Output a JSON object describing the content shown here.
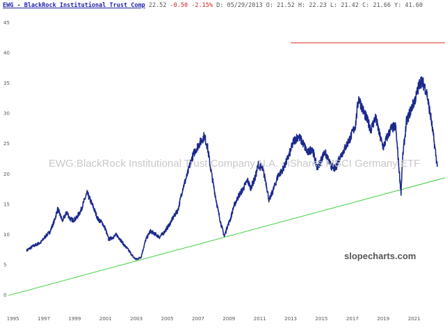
{
  "header": {
    "symbol_title": "EWG - BlackRock Institutional Trust Comp",
    "last": "22.52",
    "change": "-0.50",
    "change_pct": "-2.15%",
    "date": "D: 05/29/2013",
    "open": "O: 21.52",
    "high": "H: 22.23",
    "low": "L: 21.42",
    "close": "C: 21.66",
    "y_readout": "Y: 41.60"
  },
  "watermark": "EWG:BlackRock Institutional Trust Company N.A. - iShares MSCI Germany ETF",
  "brand": "slopecharts.com",
  "colors": {
    "price": "#1c2a8c",
    "trendline": "#3ccf3c",
    "hline": "#e05a4a",
    "axis_text": "#555555"
  },
  "chart_data": {
    "type": "line",
    "title": "EWG - BlackRock Institutional Trust Comp",
    "xlabel": "",
    "ylabel": "",
    "xlim": [
      1994.7,
      2023.0
    ],
    "ylim": [
      0,
      45
    ],
    "y_ticks": [
      0,
      5,
      10,
      15,
      20,
      25,
      30,
      35,
      40,
      45
    ],
    "x_ticks": [
      "1995",
      "1997",
      "1999",
      "2001",
      "2003",
      "2005",
      "2007",
      "2009",
      "2011",
      "2013",
      "2015",
      "2017",
      "2019",
      "2021"
    ],
    "grid": false,
    "series": [
      {
        "name": "EWG price",
        "x": [
          1995.9,
          1996.3,
          1996.8,
          1997.1,
          1997.4,
          1997.7,
          1997.9,
          1998.2,
          1998.5,
          1998.7,
          1998.9,
          1999.1,
          1999.4,
          1999.8,
          2000.2,
          2000.5,
          2000.8,
          2001.0,
          2001.2,
          2001.5,
          2001.7,
          2001.9,
          2002.2,
          2002.5,
          2002.8,
          2003.0,
          2003.3,
          2003.6,
          2003.9,
          2004.2,
          2004.5,
          2004.8,
          2005.1,
          2005.4,
          2005.7,
          2006.0,
          2006.3,
          2006.5,
          2006.8,
          2007.1,
          2007.4,
          2007.6,
          2007.8,
          2008.0,
          2008.3,
          2008.5,
          2008.7,
          2008.9,
          2009.1,
          2009.3,
          2009.6,
          2009.9,
          2010.2,
          2010.4,
          2010.7,
          2010.9,
          2011.2,
          2011.4,
          2011.6,
          2011.9,
          2012.2,
          2012.4,
          2012.7,
          2012.9,
          2013.2,
          2013.5,
          2013.8,
          2014.1,
          2014.4,
          2014.7,
          2014.9,
          2015.2,
          2015.4,
          2015.6,
          2015.9,
          2016.1,
          2016.5,
          2016.9,
          2017.2,
          2017.4,
          2017.7,
          2017.9,
          2018.2,
          2018.5,
          2018.8,
          2019.0,
          2019.2,
          2019.5,
          2019.8,
          2020.0,
          2020.15,
          2020.25,
          2020.5,
          2020.8,
          2021.1,
          2021.4,
          2021.6,
          2021.8,
          2021.95,
          2022.1,
          2022.3,
          2022.5
        ],
        "y": [
          7.3,
          8.0,
          8.6,
          9.6,
          10.4,
          12.3,
          14.2,
          12.2,
          13.6,
          12.5,
          12.3,
          12.6,
          13.9,
          16.8,
          14.5,
          12.5,
          11.8,
          10.8,
          9.1,
          9.5,
          9.9,
          9.3,
          8.2,
          7.3,
          6.2,
          5.8,
          6.2,
          9.0,
          10.5,
          10.0,
          9.5,
          10.3,
          11.4,
          12.8,
          14.0,
          17.5,
          19.8,
          21.8,
          23.8,
          25.0,
          26.2,
          24.5,
          21.0,
          18.0,
          13.8,
          11.5,
          9.6,
          11.3,
          12.5,
          14.5,
          16.2,
          17.4,
          18.9,
          17.6,
          19.3,
          21.5,
          20.6,
          18.5,
          15.5,
          17.5,
          19.8,
          20.3,
          21.8,
          23.1,
          25.4,
          26.2,
          25.0,
          23.4,
          24.2,
          21.0,
          21.8,
          23.6,
          22.4,
          21.3,
          20.7,
          22.3,
          24.1,
          26.1,
          28.0,
          32.5,
          30.4,
          29.2,
          27.3,
          29.3,
          26.0,
          24.3,
          25.7,
          27.4,
          27.8,
          21.5,
          16.8,
          22.5,
          28.5,
          30.6,
          32.5,
          35.3,
          34.8,
          33.6,
          31.2,
          29.0,
          25.2,
          21.2
        ]
      },
      {
        "name": "trendline",
        "x": [
          1994.7,
          2023.0
        ],
        "y": [
          -0.15,
          19.3
        ]
      },
      {
        "name": "horizontal line",
        "x": [
          2013.0,
          2023.0
        ],
        "y": [
          41.6,
          41.6
        ]
      }
    ]
  }
}
